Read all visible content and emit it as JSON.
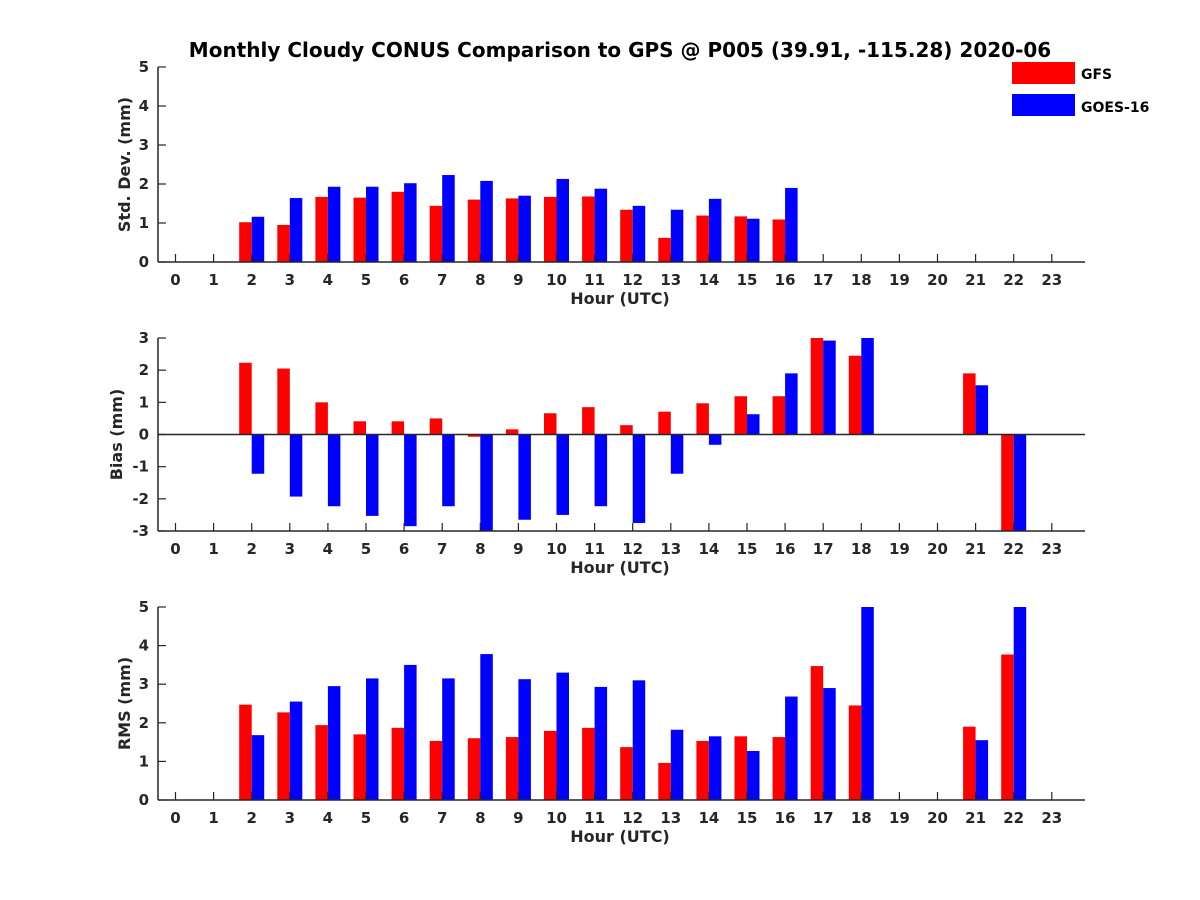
{
  "title": "Monthly Cloudy CONUS Comparison to GPS @ P005 (39.91, -115.28) 2020-06",
  "legend": [
    {
      "label": "GFS",
      "color": "#ff0000"
    },
    {
      "label": "GOES-16",
      "color": "#0000ff"
    }
  ],
  "chart_data": [
    {
      "type": "bar",
      "title": "Monthly Cloudy CONUS Comparison to GPS @ P005 (39.91, -115.28) 2020-06",
      "xlabel": "Hour (UTC)",
      "ylabel": "Std. Dev. (mm)",
      "ylim": [
        0,
        5
      ],
      "yticks": [
        "0",
        "1",
        "2",
        "3",
        "4",
        "5"
      ],
      "categories": [
        "0",
        "1",
        "2",
        "3",
        "4",
        "5",
        "6",
        "7",
        "8",
        "9",
        "10",
        "11",
        "12",
        "13",
        "14",
        "15",
        "16",
        "17",
        "18",
        "19",
        "20",
        "21",
        "22",
        "23"
      ],
      "series": [
        {
          "name": "GFS",
          "color": "#ff0000",
          "values": [
            null,
            null,
            1.02,
            0.95,
            1.67,
            1.65,
            1.8,
            1.44,
            1.6,
            1.63,
            1.67,
            1.68,
            1.34,
            0.62,
            1.19,
            1.17,
            1.09,
            null,
            null,
            null,
            null,
            null,
            null,
            null
          ]
        },
        {
          "name": "GOES-16",
          "color": "#0000ff",
          "values": [
            null,
            null,
            1.16,
            1.64,
            1.93,
            1.93,
            2.02,
            2.23,
            2.08,
            1.7,
            2.13,
            1.88,
            1.44,
            1.34,
            1.62,
            1.11,
            1.9,
            null,
            null,
            null,
            null,
            null,
            null,
            null
          ]
        }
      ]
    },
    {
      "type": "bar",
      "xlabel": "Hour (UTC)",
      "ylabel": "Bias (mm)",
      "ylim": [
        -3,
        3
      ],
      "yticks": [
        "-3",
        "-2",
        "-1",
        "0",
        "1",
        "2",
        "3"
      ],
      "categories": [
        "0",
        "1",
        "2",
        "3",
        "4",
        "5",
        "6",
        "7",
        "8",
        "9",
        "10",
        "11",
        "12",
        "13",
        "14",
        "15",
        "16",
        "17",
        "18",
        "19",
        "20",
        "21",
        "22",
        "23"
      ],
      "series": [
        {
          "name": "GFS",
          "color": "#ff0000",
          "values": [
            null,
            null,
            2.23,
            2.05,
            1.0,
            0.41,
            0.41,
            0.5,
            -0.07,
            0.16,
            0.66,
            0.85,
            0.29,
            0.71,
            0.97,
            1.19,
            1.19,
            3.0,
            2.45,
            null,
            null,
            1.9,
            -3.0,
            null
          ]
        },
        {
          "name": "GOES-16",
          "color": "#0000ff",
          "values": [
            null,
            null,
            -1.22,
            -1.93,
            -2.23,
            -2.53,
            -2.85,
            -2.23,
            -3.0,
            -2.65,
            -2.5,
            -2.23,
            -2.75,
            -1.22,
            -0.32,
            0.63,
            1.9,
            2.92,
            3.0,
            null,
            null,
            1.53,
            -3.0,
            null
          ]
        }
      ]
    },
    {
      "type": "bar",
      "xlabel": "Hour (UTC)",
      "ylabel": "RMS (mm)",
      "ylim": [
        0,
        5
      ],
      "yticks": [
        "0",
        "1",
        "2",
        "3",
        "4",
        "5"
      ],
      "categories": [
        "0",
        "1",
        "2",
        "3",
        "4",
        "5",
        "6",
        "7",
        "8",
        "9",
        "10",
        "11",
        "12",
        "13",
        "14",
        "15",
        "16",
        "17",
        "18",
        "19",
        "20",
        "21",
        "22",
        "23"
      ],
      "series": [
        {
          "name": "GFS",
          "color": "#ff0000",
          "values": [
            null,
            null,
            2.47,
            2.27,
            1.94,
            1.7,
            1.87,
            1.53,
            1.6,
            1.63,
            1.79,
            1.87,
            1.37,
            0.96,
            1.53,
            1.65,
            1.63,
            3.47,
            2.45,
            null,
            null,
            1.9,
            3.77,
            null
          ]
        },
        {
          "name": "GOES-16",
          "color": "#0000ff",
          "values": [
            null,
            null,
            1.68,
            2.55,
            2.95,
            3.15,
            3.5,
            3.15,
            3.78,
            3.13,
            3.3,
            2.93,
            3.1,
            1.82,
            1.65,
            1.27,
            2.68,
            2.9,
            5.0,
            null,
            null,
            1.55,
            5.0,
            null
          ]
        }
      ]
    }
  ]
}
